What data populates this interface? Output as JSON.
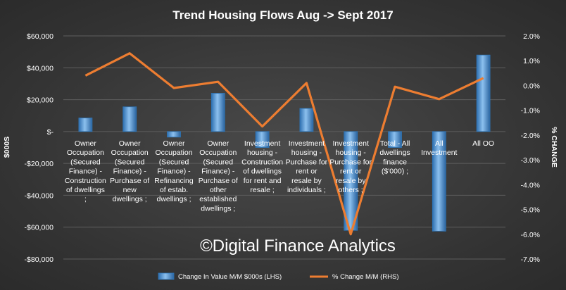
{
  "chart_data": {
    "type": "bar",
    "title": "Trend Housing Flows Aug -> Sept 2017",
    "ylabel_left": "$000S",
    "ylabel_right": "% CHANGE",
    "categories": [
      [
        "Owner",
        "Occupation",
        "(Secured",
        "Finance) -",
        "Construction",
        "of dwellings",
        ";"
      ],
      [
        "Owner",
        "Occupation",
        "(Secured",
        "Finance) -",
        "Purchase of",
        "new",
        "dwellings ;"
      ],
      [
        "Owner",
        "Occupation",
        "(Secured",
        "Finance) -",
        "Refinancing",
        "of estab.",
        "dwellings ;"
      ],
      [
        "Owner",
        "Occupation",
        "(Secured",
        "Finance) -",
        "Purchase of",
        "other",
        "established",
        "dwellings ;"
      ],
      [
        "Investment",
        "housing -",
        "Construction",
        "of dwellings",
        "for rent and",
        "resale ;"
      ],
      [
        "Investment",
        "housing -",
        "Purchase for",
        "rent or",
        "resale by",
        "individuals ;"
      ],
      [
        "Investment",
        "housing -",
        "Purchase for",
        "rent or",
        "resale by",
        "others ;"
      ],
      [
        "Total - All",
        "dwellings",
        "finance",
        "($'000) ;"
      ],
      [
        "All",
        "Investment"
      ],
      [
        "All OO"
      ]
    ],
    "series": [
      {
        "name": "Change In Value M/M $000s (LHS)",
        "type": "bar",
        "axis": "left",
        "values": [
          8500,
          15500,
          -3500,
          24000,
          -10000,
          14500,
          -62000,
          -10000,
          -62500,
          48000
        ]
      },
      {
        "name": "% Change M/M (RHS)",
        "type": "line",
        "axis": "right",
        "values": [
          0.4,
          1.3,
          -0.1,
          0.15,
          -1.65,
          0.1,
          -6.0,
          -0.05,
          -0.55,
          0.3
        ]
      }
    ],
    "left_axis": {
      "min": -80000,
      "max": 60000,
      "step": 20000,
      "ticks": [
        "$60,000",
        "$40,000",
        "$20,000",
        "$-",
        "-$20,000",
        "-$40,000",
        "-$60,000",
        "-$80,000"
      ]
    },
    "right_axis": {
      "min": -7.0,
      "max": 2.0,
      "step": 1.0,
      "ticks": [
        "2.0%",
        "1.0%",
        "0.0%",
        "-1.0%",
        "-2.0%",
        "-3.0%",
        "-4.0%",
        "-5.0%",
        "-6.0%",
        "-7.0%"
      ]
    },
    "grid": true,
    "legend": "bottom",
    "watermark": "©Digital Finance Analytics",
    "colors": {
      "bar": "#5b9bd5",
      "bar_edge": "#2e75b6",
      "line": "#ed7d31",
      "grid": "#5e5e5e"
    }
  }
}
